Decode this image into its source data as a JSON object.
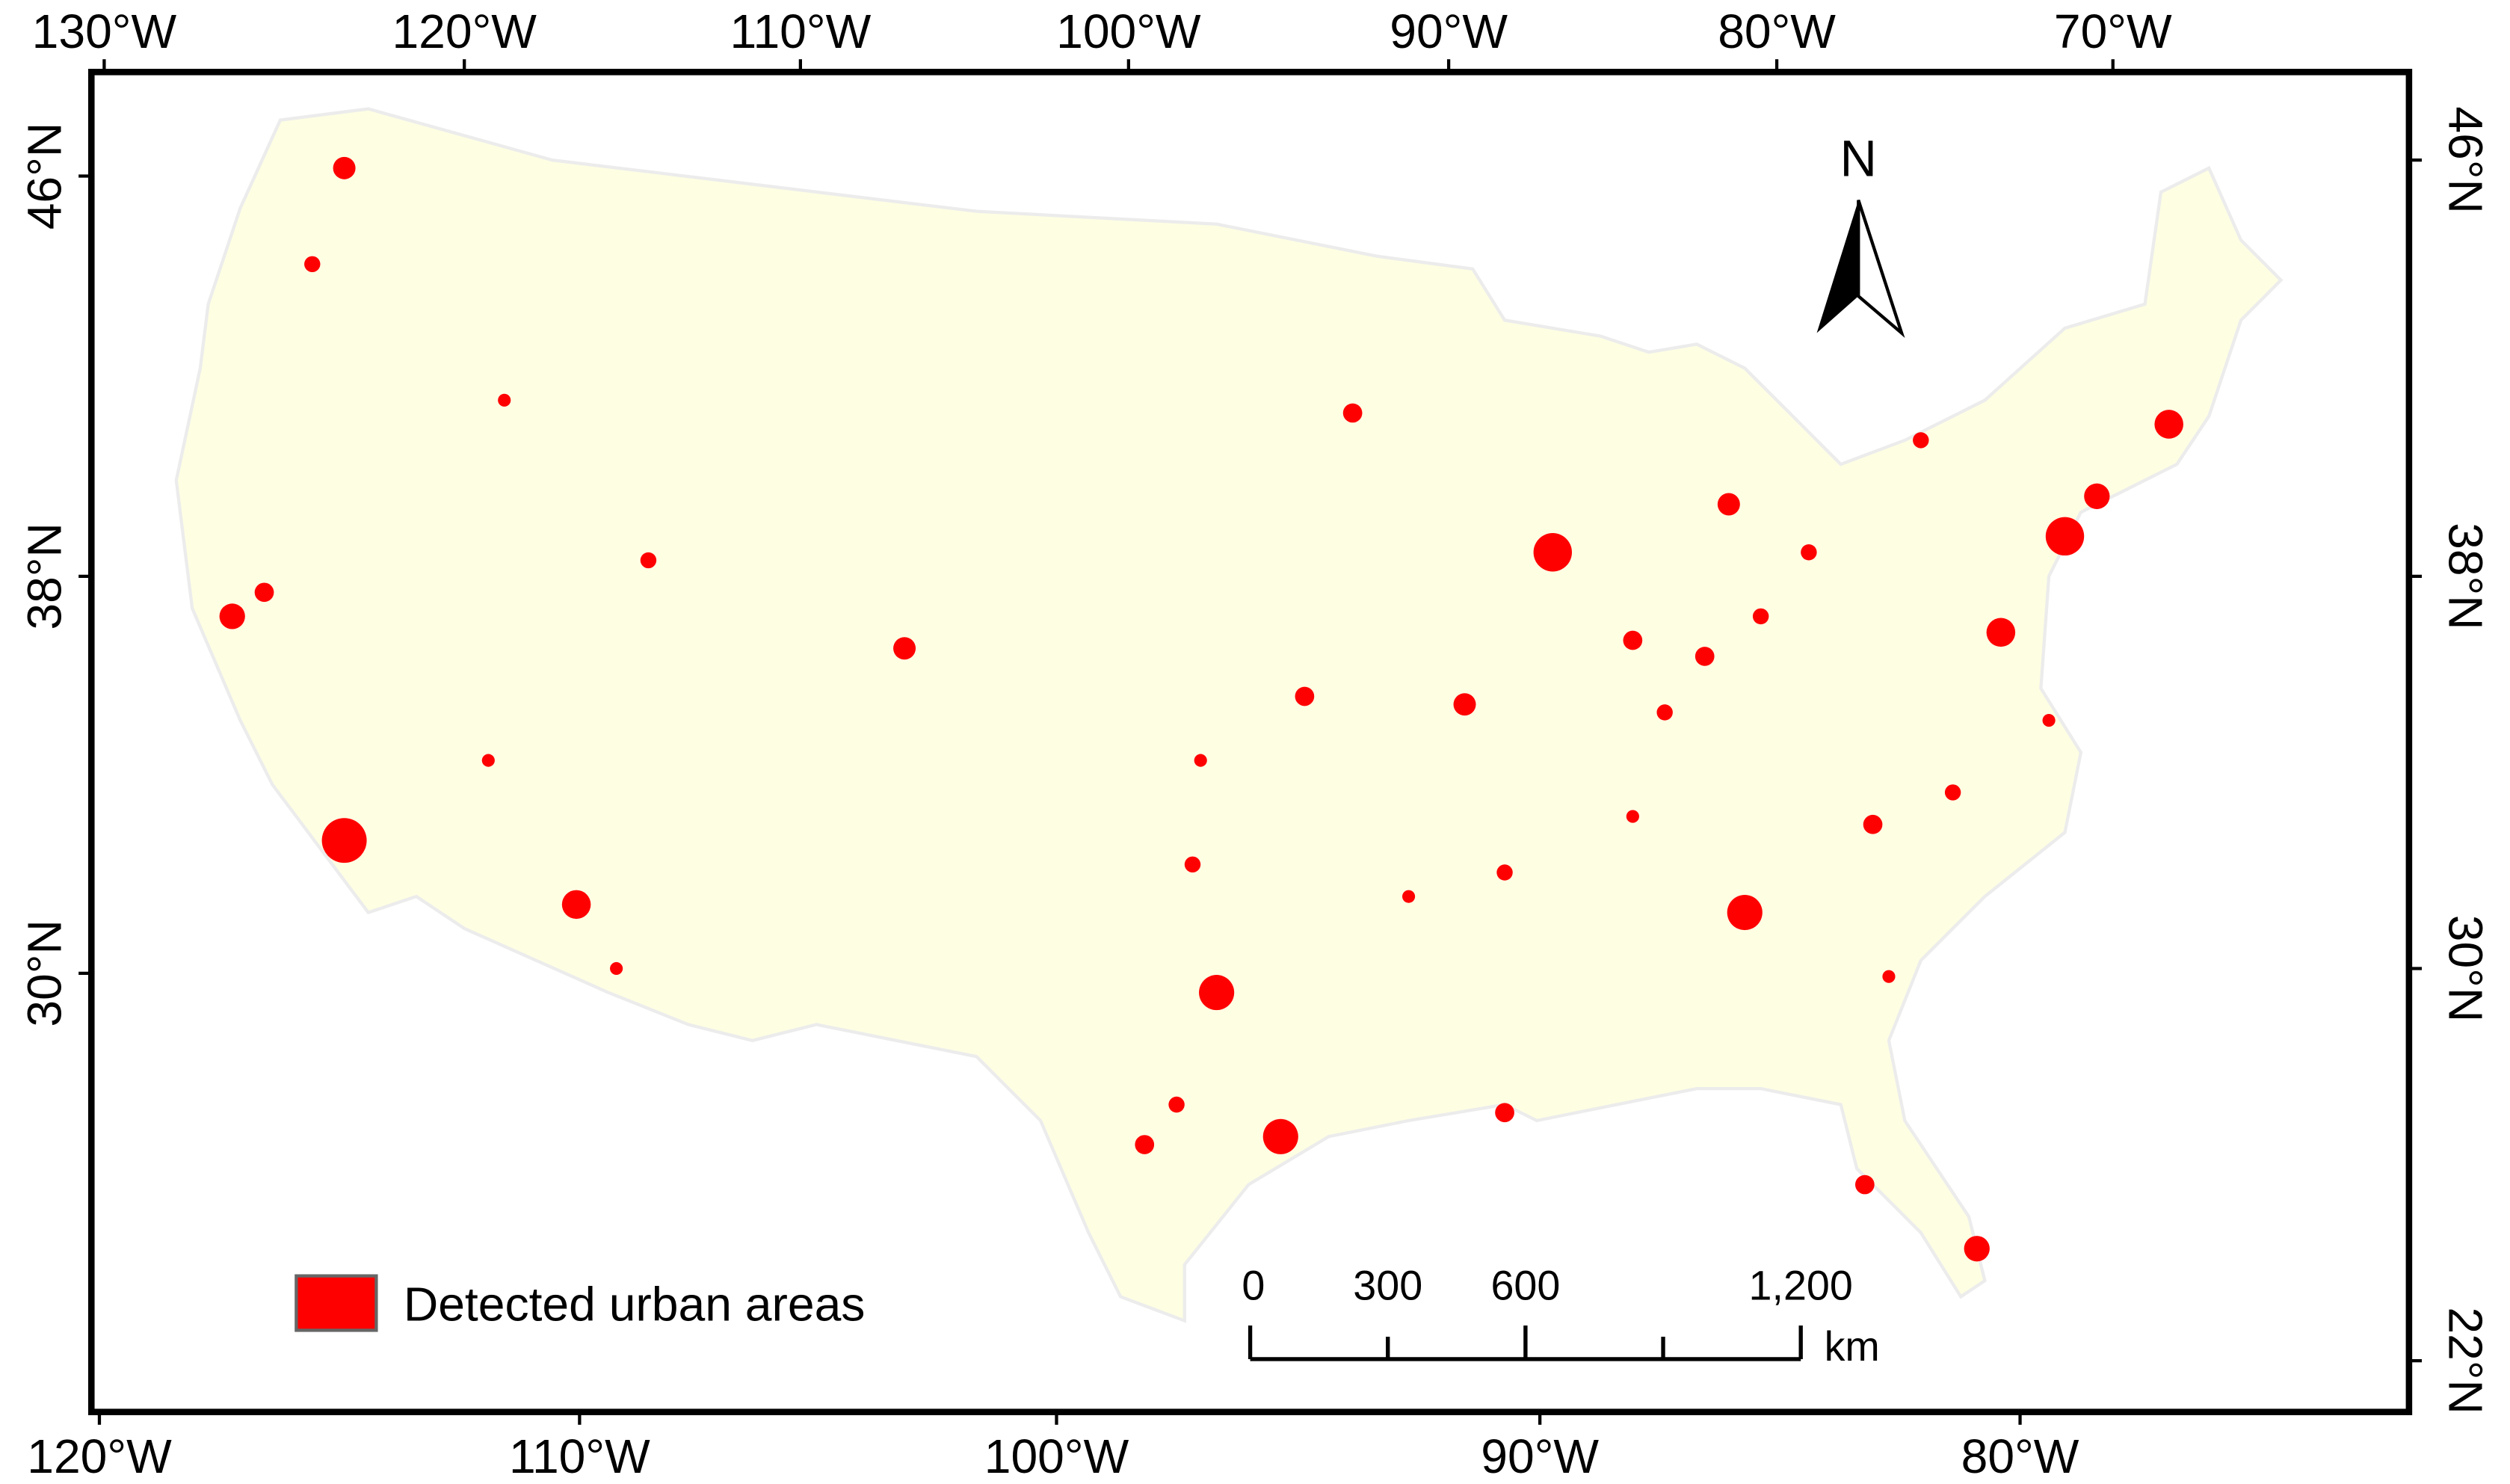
{
  "top_axis": {
    "labels": [
      "130°W",
      "120°W",
      "110°W",
      "100°W",
      "90°W",
      "80°W",
      "70°W"
    ]
  },
  "bottom_axis": {
    "labels": [
      "120°W",
      "110°W",
      "100°W",
      "90°W",
      "80°W"
    ]
  },
  "left_axis": {
    "labels": [
      "46°N",
      "38°N",
      "30°N"
    ]
  },
  "right_axis": {
    "labels": [
      "46°N",
      "38°N",
      "30°N",
      "22°N"
    ]
  },
  "north_arrow": {
    "label": "N"
  },
  "legend": {
    "label": "Detected urban areas"
  },
  "scale_bar": {
    "labels": [
      "0",
      "300",
      "600",
      "1,200"
    ],
    "unit": "km"
  }
}
